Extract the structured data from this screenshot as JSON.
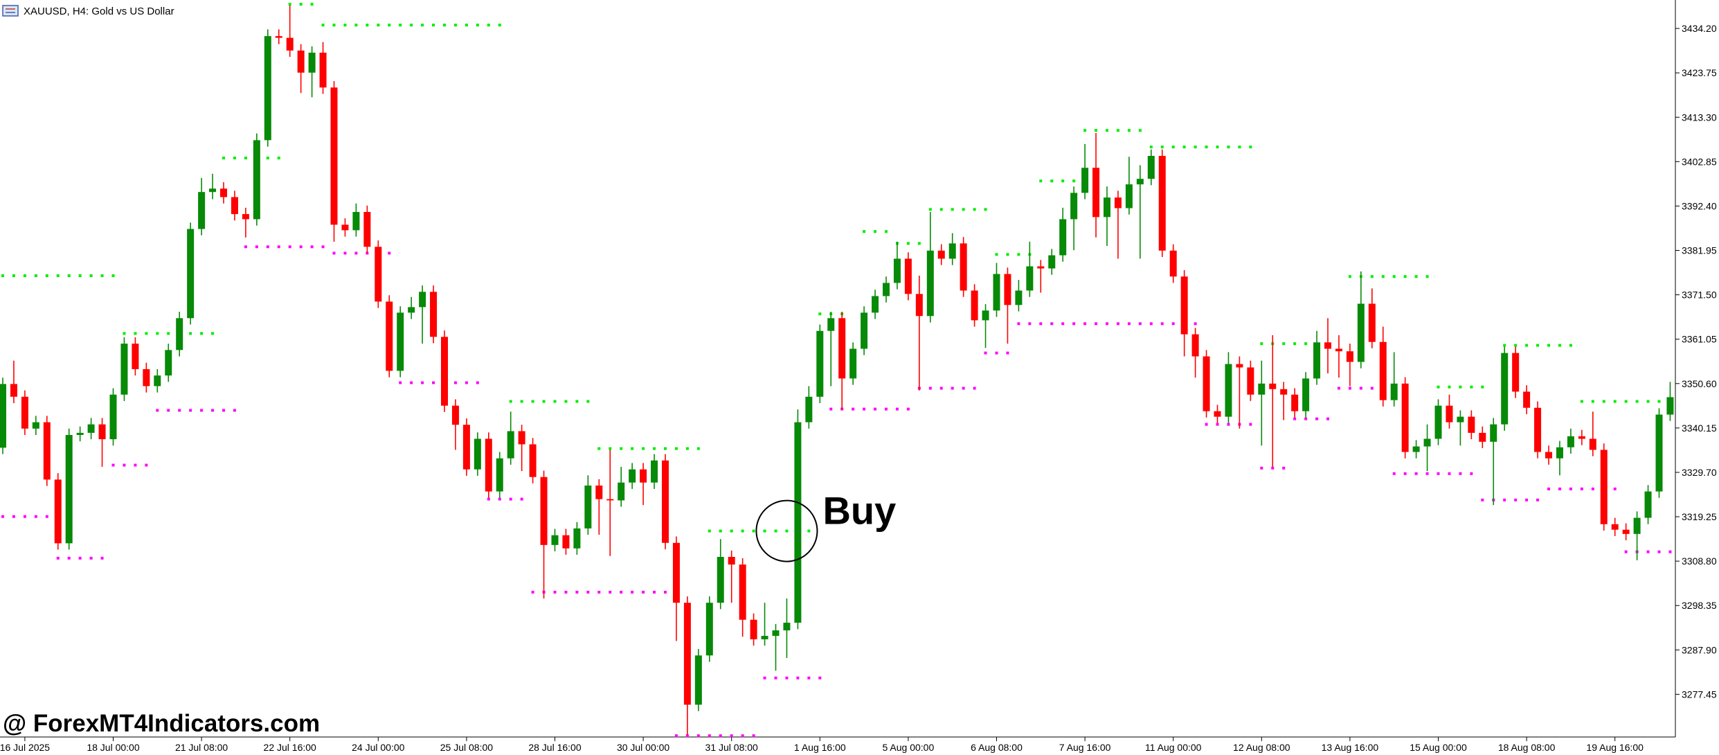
{
  "chart_data": {
    "type": "candlestick",
    "title": "XAUUSD, H4:  Gold vs US Dollar",
    "watermark": "@ ForexMT4Indicators.com",
    "annotation": {
      "text": "Buy",
      "index": 71,
      "value": 3315.9
    },
    "up_color": "#078a07",
    "down_color": "#ff0000",
    "ylim": [
      3267.4,
      3440.9
    ],
    "yticks": [
      {
        "value": 3434.2,
        "label": "3434.20"
      },
      {
        "value": 3423.75,
        "label": "3423.75"
      },
      {
        "value": 3413.3,
        "label": "3413.30"
      },
      {
        "value": 3402.85,
        "label": "3402.85"
      },
      {
        "value": 3392.4,
        "label": "3392.40"
      },
      {
        "value": 3381.95,
        "label": "3381.95"
      },
      {
        "value": 3371.5,
        "label": "3371.50"
      },
      {
        "value": 3361.05,
        "label": "3361.05"
      },
      {
        "value": 3350.6,
        "label": "3350.60"
      },
      {
        "value": 3340.15,
        "label": "3340.15"
      },
      {
        "value": 3329.7,
        "label": "3329.70"
      },
      {
        "value": 3319.25,
        "label": "3319.25"
      },
      {
        "value": 3308.8,
        "label": "3308.80"
      },
      {
        "value": 3298.35,
        "label": "3298.35"
      },
      {
        "value": 3287.9,
        "label": "3287.90"
      },
      {
        "value": 3277.45,
        "label": "3277.45"
      }
    ],
    "categories": [
      null,
      null,
      "16 Jul 2025",
      null,
      null,
      null,
      null,
      null,
      null,
      null,
      "18 Jul 00:00",
      null,
      null,
      null,
      null,
      null,
      null,
      null,
      "21 Jul 08:00",
      null,
      null,
      null,
      null,
      null,
      null,
      null,
      "22 Jul 16:00",
      null,
      null,
      null,
      null,
      null,
      null,
      null,
      "24 Jul 00:00",
      null,
      null,
      null,
      null,
      null,
      null,
      null,
      "25 Jul 08:00",
      null,
      null,
      null,
      null,
      null,
      null,
      null,
      "28 Jul 16:00",
      null,
      null,
      null,
      null,
      null,
      null,
      null,
      "30 Jul 00:00",
      null,
      null,
      null,
      null,
      null,
      null,
      null,
      "31 Jul 08:00",
      null,
      null,
      null,
      null,
      null,
      null,
      null,
      "1 Aug 16:00",
      null,
      null,
      null,
      null,
      null,
      null,
      null,
      "5 Aug 00:00",
      null,
      null,
      null,
      null,
      null,
      null,
      null,
      "6 Aug 08:00",
      null,
      null,
      null,
      null,
      null,
      null,
      null,
      "7 Aug 16:00",
      null,
      null,
      null,
      null,
      null,
      null,
      null,
      "11 Aug 00:00",
      null,
      null,
      null,
      null,
      null,
      null,
      null,
      "12 Aug 08:00",
      null,
      null,
      null,
      null,
      null,
      null,
      null,
      "13 Aug 16:00",
      null,
      null,
      null,
      null,
      null,
      null,
      null,
      "15 Aug 00:00",
      null,
      null,
      null,
      null,
      null,
      null,
      null,
      "18 Aug 08:00",
      null,
      null,
      null,
      null,
      null,
      null,
      null,
      "19 Aug 16:00",
      null,
      null,
      null,
      null,
      null
    ],
    "open": [
      3335.5,
      3350.5,
      3347.5,
      3340,
      3341.5,
      3328,
      3313,
      3338.5,
      3339,
      3341,
      3337.5,
      3348,
      3360,
      3354,
      3350,
      3352.5,
      3358.5,
      3366,
      3387,
      3395.7,
      3396.5,
      3394.5,
      3390.5,
      3389.3,
      3407.9,
      3432.4,
      3432,
      3429,
      3423.8,
      3428.5,
      3420.3,
      3388,
      3386.7,
      3391,
      3382.8,
      3369.9,
      3353.6,
      3367.3,
      3368.6,
      3372.2,
      3361.6,
      3345.4,
      3340.9,
      3330.4,
      3337.6,
      3325.2,
      3333,
      3339.4,
      3336.3,
      3328.6,
      3312.6,
      3314.9,
      3311.8,
      3316.5,
      3326.6,
      3323.4,
      3323.1,
      3327.3,
      3330.4,
      3327.3,
      3332.5,
      3313.1,
      3299,
      3275,
      3286.6,
      3299,
      3309.8,
      3308,
      3295,
      3290.4,
      3291.2,
      3292.5,
      3294.3,
      3341.5,
      3347.5,
      3363,
      3366,
      3351.8,
      3358.8,
      3367.3,
      3371.2,
      3374.3,
      3380,
      3371.7,
      3366.5,
      3381.9,
      3380,
      3383.6,
      3372.5,
      3365.5,
      3367.8,
      3376.4,
      3369.1,
      3372.5,
      3378.2,
      3377.7,
      3380.8,
      3389.3,
      3395.5,
      3401.4,
      3389.8,
      3394.4,
      3391.9,
      3397.5,
      3398.8,
      3404.2,
      3381.9,
      3375.8,
      3362.2,
      3357,
      3344.1,
      3342.8,
      3355.2,
      3354.4,
      3348,
      3350.6,
      3349.3,
      3348,
      3344.1,
      3351.8,
      3360.3,
      3358.8,
      3358.2,
      3355.7,
      3369.4,
      3360.4,
      3346.7,
      3350.6,
      3334.5,
      3335.8,
      3337.6,
      3345.4,
      3341.5,
      3342.8,
      3339,
      3336.9,
      3341,
      3357.8,
      3348.7,
      3344.9,
      3334.5,
      3333,
      3335.6,
      3338.2,
      3337.6,
      3335,
      3317.5,
      3316.2,
      3315.2,
      3319,
      3325.2,
      3343.3
    ],
    "high": [
      3352,
      3356,
      3349,
      3343,
      3343,
      3329.5,
      3340,
      3340.5,
      3342.5,
      3342.5,
      3349.5,
      3361.5,
      3361.5,
      3355.5,
      3354,
      3360,
      3367.5,
      3388.5,
      3399,
      3400,
      3398,
      3396,
      3392,
      3409.5,
      3434,
      3434,
      3439.6,
      3430.5,
      3430,
      3431,
      3421.8,
      3389.5,
      3393,
      3392.5,
      3384.3,
      3371.4,
      3368.8,
      3371,
      3373.7,
      3373.7,
      3363.1,
      3346.9,
      3342.4,
      3339.1,
      3339.1,
      3334.5,
      3344,
      3340.9,
      3337.8,
      3330.1,
      3316.4,
      3316.4,
      3318,
      3329,
      3328.1,
      3335,
      3331,
      3331.9,
      3331.9,
      3334,
      3334,
      3314.6,
      3300.5,
      3288.1,
      3300.5,
      3314,
      3311.3,
      3309.5,
      3296.5,
      3299,
      3294,
      3300,
      3344.5,
      3350,
      3364.5,
      3367.5,
      3367.5,
      3360.3,
      3368.8,
      3372.7,
      3375.8,
      3384,
      3381.5,
      3376,
      3391,
      3383.4,
      3386,
      3385.1,
      3374,
      3369.3,
      3379,
      3377.9,
      3375,
      3384,
      3379.7,
      3382.3,
      3392,
      3397,
      3407,
      3409.6,
      3397,
      3396,
      3404,
      3402,
      3405.7,
      3405.7,
      3383.4,
      3377.3,
      3363.7,
      3358.5,
      3345.6,
      3358,
      3357,
      3356,
      3356,
      3362,
      3351,
      3349.5,
      3353.3,
      3363,
      3366,
      3362,
      3360,
      3377,
      3373,
      3364,
      3358,
      3352.1,
      3337.3,
      3341,
      3346.9,
      3348,
      3344.3,
      3344.3,
      3340.5,
      3342.5,
      3359.3,
      3359.3,
      3350.2,
      3346.4,
      3336,
      3337.1,
      3340,
      3339.7,
      3344,
      3336.5,
      3319,
      3317.7,
      3320.5,
      3326.7,
      3344.8,
      3351
    ],
    "low": [
      3334,
      3346,
      3338.5,
      3338.5,
      3326.5,
      3311.5,
      3311.5,
      3337,
      3337.5,
      3331,
      3336,
      3346.5,
      3352.5,
      3348.5,
      3348.5,
      3351,
      3357,
      3364.5,
      3385.5,
      3394,
      3393,
      3389,
      3385,
      3387.8,
      3406.4,
      3430.5,
      3427.5,
      3419,
      3418,
      3418.8,
      3384,
      3385.2,
      3385.2,
      3381.3,
      3368.4,
      3352.1,
      3352.1,
      3365.8,
      3360,
      3360.1,
      3343.9,
      3335,
      3328.9,
      3328.9,
      3323.7,
      3323.7,
      3331.5,
      3330,
      3327.1,
      3300,
      3311.1,
      3310.3,
      3310.3,
      3315,
      3315,
      3310,
      3321.6,
      3325.8,
      3322,
      3325.8,
      3311.6,
      3290,
      3267.8,
      3273.5,
      3285.1,
      3297.5,
      3299,
      3291,
      3288.9,
      3288.9,
      3283,
      3286,
      3292.8,
      3340,
      3346,
      3350,
      3344.5,
      3350.3,
      3357.3,
      3365.8,
      3369.7,
      3372.8,
      3370.2,
      3349,
      3365,
      3378.5,
      3378.5,
      3371,
      3364,
      3359,
      3366.3,
      3360,
      3367.6,
      3371,
      3372,
      3376.2,
      3379.3,
      3382,
      3394,
      3385,
      3383,
      3380,
      3390.4,
      3380,
      3397.3,
      3380.4,
      3374.3,
      3357,
      3352,
      3342.6,
      3341.3,
      3341.3,
      3340,
      3346.5,
      3336,
      3331,
      3342,
      3342.6,
      3342.6,
      3350.3,
      3353,
      3352,
      3350,
      3354.2,
      3358.9,
      3345.2,
      3345.2,
      3333,
      3333,
      3330,
      3336.1,
      3340,
      3336,
      3337.5,
      3335.4,
      3322,
      3339.5,
      3347.2,
      3343.4,
      3333,
      3331.5,
      3329,
      3334.1,
      3336.1,
      3333.5,
      3316,
      3314.7,
      3313.7,
      3309,
      3317.5,
      3323.7,
      3341.8
    ],
    "close": [
      3350.5,
      3347.5,
      3340,
      3341.5,
      3328,
      3313,
      3338.5,
      3339,
      3341,
      3337.5,
      3348,
      3360,
      3354,
      3350,
      3352.5,
      3358.5,
      3366,
      3387,
      3395.7,
      3396.5,
      3394.5,
      3390.5,
      3389.3,
      3407.9,
      3432.4,
      3432,
      3429,
      3423.8,
      3428.5,
      3420.3,
      3388,
      3386.7,
      3391,
      3382.8,
      3369.9,
      3353.6,
      3367.3,
      3368.6,
      3372.2,
      3361.6,
      3345.4,
      3340.9,
      3330.4,
      3337.6,
      3325.2,
      3333,
      3339.4,
      3336.3,
      3328.6,
      3312.6,
      3314.9,
      3311.8,
      3316.5,
      3326.6,
      3323.4,
      3323.1,
      3327.3,
      3330.4,
      3327.3,
      3332.5,
      3313.1,
      3299,
      3275,
      3286.6,
      3299,
      3309.8,
      3308,
      3295,
      3290.4,
      3291.2,
      3292.5,
      3294.3,
      3341.5,
      3347.5,
      3363,
      3366,
      3351.8,
      3358.8,
      3367.3,
      3371.2,
      3374.3,
      3380,
      3371.7,
      3366.5,
      3381.9,
      3380,
      3383.6,
      3372.5,
      3365.5,
      3367.8,
      3376.4,
      3369.1,
      3372.5,
      3378.2,
      3377.7,
      3380.8,
      3389.3,
      3395.5,
      3401.4,
      3389.8,
      3394.4,
      3391.9,
      3397.5,
      3398.8,
      3404.2,
      3381.9,
      3375.8,
      3362.2,
      3357,
      3344.1,
      3342.8,
      3355.2,
      3354.4,
      3348,
      3350.6,
      3349.3,
      3348,
      3344.1,
      3351.8,
      3360.3,
      3358.8,
      3358.2,
      3355.7,
      3369.4,
      3360.4,
      3346.7,
      3350.6,
      3334.5,
      3335.8,
      3337.6,
      3345.4,
      3341.5,
      3342.8,
      3339,
      3336.9,
      3341,
      3357.8,
      3348.7,
      3344.9,
      3334.5,
      3333,
      3335.6,
      3338.2,
      3337.6,
      3335,
      3317.5,
      3316.2,
      3315.2,
      3319,
      3325.2,
      3343.3,
      3347.4
    ],
    "resistance_color": "#00ee00",
    "resistance": [
      {
        "from": 0,
        "to": 10,
        "value": 3376
      },
      {
        "from": 11,
        "to": 19,
        "value": 3362.4
      },
      {
        "from": 20,
        "to": 25,
        "value": 3403.7
      },
      {
        "from": 26,
        "to": 28,
        "value": 3439.9
      },
      {
        "from": 29,
        "to": 45,
        "value": 3435
      },
      {
        "from": 46,
        "to": 53,
        "value": 3346.4
      },
      {
        "from": 54,
        "to": 63,
        "value": 3335.3
      },
      {
        "from": 64,
        "to": 73,
        "value": 3315.9
      },
      {
        "from": 74,
        "to": 76,
        "value": 3367
      },
      {
        "from": 78,
        "to": 80,
        "value": 3386.4
      },
      {
        "from": 81,
        "to": 83,
        "value": 3383.6
      },
      {
        "from": 84,
        "to": 89,
        "value": 3391.6
      },
      {
        "from": 90,
        "to": 93,
        "value": 3381
      },
      {
        "from": 94,
        "to": 97,
        "value": 3398.3
      },
      {
        "from": 98,
        "to": 103,
        "value": 3410.2
      },
      {
        "from": 104,
        "to": 113,
        "value": 3406.3
      },
      {
        "from": 114,
        "to": 118,
        "value": 3360
      },
      {
        "from": 122,
        "to": 129,
        "value": 3375.8
      },
      {
        "from": 130,
        "to": 134,
        "value": 3349.8
      },
      {
        "from": 136,
        "to": 142,
        "value": 3359.6
      },
      {
        "from": 143,
        "to": 151,
        "value": 3346.4
      }
    ],
    "support_color": "#ff00ff",
    "support": [
      {
        "from": 0,
        "to": 4,
        "value": 3319.3
      },
      {
        "from": 5,
        "to": 9,
        "value": 3309.5
      },
      {
        "from": 10,
        "to": 13,
        "value": 3331.4
      },
      {
        "from": 14,
        "to": 21,
        "value": 3344.3
      },
      {
        "from": 22,
        "to": 29,
        "value": 3382.8
      },
      {
        "from": 30,
        "to": 35,
        "value": 3381.3
      },
      {
        "from": 36,
        "to": 43,
        "value": 3350.8
      },
      {
        "from": 44,
        "to": 47,
        "value": 3323.4
      },
      {
        "from": 48,
        "to": 60,
        "value": 3301.5
      },
      {
        "from": 61,
        "to": 68,
        "value": 3267.7
      },
      {
        "from": 69,
        "to": 74,
        "value": 3281.3
      },
      {
        "from": 75,
        "to": 82,
        "value": 3344.6
      },
      {
        "from": 83,
        "to": 88,
        "value": 3349.5
      },
      {
        "from": 89,
        "to": 91,
        "value": 3357.8
      },
      {
        "from": 92,
        "to": 108,
        "value": 3364.7
      },
      {
        "from": 109,
        "to": 113,
        "value": 3341
      },
      {
        "from": 114,
        "to": 116,
        "value": 3330.7
      },
      {
        "from": 117,
        "to": 120,
        "value": 3342.3
      },
      {
        "from": 121,
        "to": 125,
        "value": 3349.5
      },
      {
        "from": 126,
        "to": 133,
        "value": 3329.4
      },
      {
        "from": 134,
        "to": 139,
        "value": 3323.2
      },
      {
        "from": 140,
        "to": 146,
        "value": 3325.8
      },
      {
        "from": 147,
        "to": 151,
        "value": 3311
      }
    ]
  }
}
